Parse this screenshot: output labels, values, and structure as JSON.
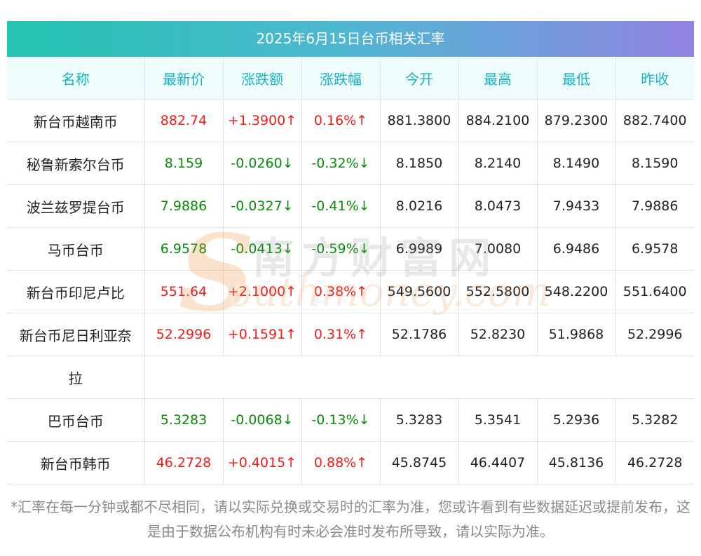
{
  "title": "2025年6月15日台币相关汇率",
  "headers": [
    "名称",
    "最新价",
    "涨跌额",
    "涨跌幅",
    "今开",
    "最高",
    "最低",
    "昨收"
  ],
  "rows": [
    {
      "name": "新台币越南币",
      "latest": "882.74",
      "change": "+1.3900↑",
      "pct": "0.16%↑",
      "open": "881.3800",
      "high": "884.2100",
      "low": "879.2300",
      "prev": "882.7400",
      "dir": "up"
    },
    {
      "name": "秘鲁新索尔台币",
      "latest": "8.159",
      "change": "-0.0260↓",
      "pct": "-0.32%↓",
      "open": "8.1850",
      "high": "8.2140",
      "low": "8.1490",
      "prev": "8.1590",
      "dir": "down"
    },
    {
      "name": "波兰兹罗提台币",
      "latest": "7.9886",
      "change": "-0.0327↓",
      "pct": "-0.41%↓",
      "open": "8.0216",
      "high": "8.0473",
      "low": "7.9433",
      "prev": "7.9886",
      "dir": "down"
    },
    {
      "name": "马币台币",
      "latest": "6.9578",
      "change": "-0.0413↓",
      "pct": "-0.59%↓",
      "open": "6.9989",
      "high": "7.0080",
      "low": "6.9486",
      "prev": "6.9578",
      "dir": "down"
    },
    {
      "name": "新台币印尼卢比",
      "latest": "551.64",
      "change": "+2.1000↑",
      "pct": "0.38%↑",
      "open": "549.5600",
      "high": "552.5800",
      "low": "548.2200",
      "prev": "551.6400",
      "dir": "up"
    },
    {
      "name": "新台币尼日利亚奈",
      "name_wrap": "拉",
      "latest": "52.2996",
      "change": "+0.1591↑",
      "pct": "0.31%↑",
      "open": "52.1786",
      "high": "52.8230",
      "low": "51.9868",
      "prev": "52.2996",
      "dir": "up"
    },
    {
      "name": "巴币台币",
      "latest": "5.3283",
      "change": "-0.0068↓",
      "pct": "-0.13%↓",
      "open": "5.3283",
      "high": "5.3541",
      "low": "5.2936",
      "prev": "5.3282",
      "dir": "down"
    },
    {
      "name": "新台币韩币",
      "latest": "46.2728",
      "change": "+0.4015↑",
      "pct": "0.88%↑",
      "open": "45.8745",
      "high": "46.4407",
      "low": "45.8136",
      "prev": "46.2728",
      "dir": "up"
    }
  ],
  "watermark": {
    "cn": "南方财富网",
    "en": "outhmoney.com",
    "s": "S"
  },
  "note": "*汇率在每一分钟或都不尽相同，请以实际兑换或交易时的汇率为准，您或许看到有些数据延迟或提前发布，这是由于数据公布机构有时未必会准时发布所导致，请以实际为准。",
  "colors": {
    "up": "#ee1c1c",
    "down": "#0a8a0a",
    "header_text": "#1ab3c4",
    "header_bg": "#eefcfc",
    "title_grad_start": "#23c4b0",
    "title_grad_end": "#9184e2"
  }
}
